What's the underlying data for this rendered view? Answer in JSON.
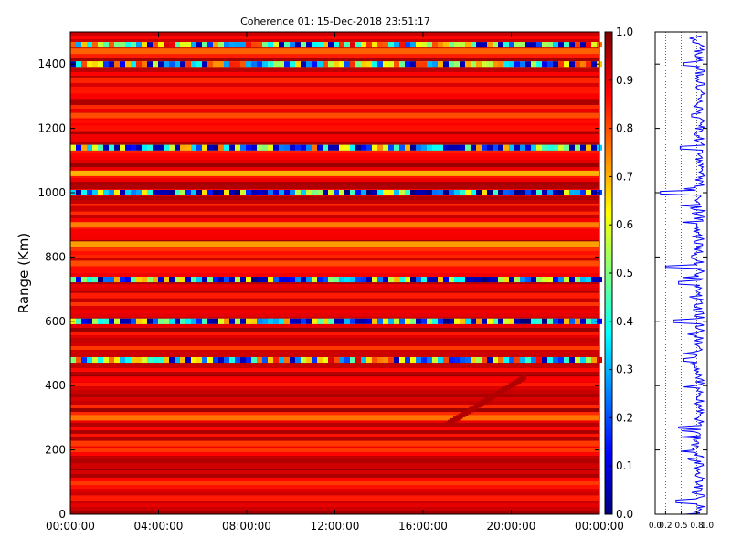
{
  "chart_data": [
    {
      "type": "heatmap",
      "title": "Coherence 01: 15-Dec-2018 23:51:17",
      "xlabel": "",
      "ylabel": "Range (Km)",
      "x_ticks": [
        "00:00:00",
        "04:00:00",
        "08:00:00",
        "12:00:00",
        "16:00:00",
        "20:00:00",
        "00:00:00"
      ],
      "xlim_hours": [
        0,
        24
      ],
      "y_ticks": [
        0,
        200,
        400,
        600,
        800,
        1000,
        1200,
        1400
      ],
      "ylim": [
        0,
        1500
      ],
      "colormap": "jet",
      "color_range": [
        0.0,
        1.0
      ],
      "colorbar_ticks": [
        "0.0",
        "0.1",
        "0.2",
        "0.3",
        "0.4",
        "0.5",
        "0.6",
        "0.7",
        "0.8",
        "0.9",
        "1.0"
      ],
      "range_bands": [
        {
          "range_km": 1460,
          "coherence": 0.62
        },
        {
          "range_km": 1440,
          "coherence": 0.78
        },
        {
          "range_km": 1400,
          "coherence": 0.55
        },
        {
          "range_km": 1350,
          "coherence": 0.84
        },
        {
          "range_km": 1300,
          "coherence": 0.88
        },
        {
          "range_km": 1240,
          "coherence": 0.8
        },
        {
          "range_km": 1200,
          "coherence": 0.86
        },
        {
          "range_km": 1140,
          "coherence": 0.45
        },
        {
          "range_km": 1060,
          "coherence": 0.7
        },
        {
          "range_km": 1000,
          "coherence": 0.35
        },
        {
          "range_km": 950,
          "coherence": 0.92
        },
        {
          "range_km": 900,
          "coherence": 0.75
        },
        {
          "range_km": 840,
          "coherence": 0.72
        },
        {
          "range_km": 780,
          "coherence": 0.8
        },
        {
          "range_km": 730,
          "coherence": 0.4
        },
        {
          "range_km": 680,
          "coherence": 0.85
        },
        {
          "range_km": 600,
          "coherence": 0.42
        },
        {
          "range_km": 540,
          "coherence": 0.93
        },
        {
          "range_km": 480,
          "coherence": 0.6
        },
        {
          "range_km": 420,
          "coherence": 0.88
        },
        {
          "range_km": 300,
          "coherence": 0.76
        },
        {
          "range_km": 220,
          "coherence": 0.82
        },
        {
          "range_km": 150,
          "coherence": 0.92
        },
        {
          "range_km": 50,
          "coherence": 0.85
        }
      ]
    },
    {
      "type": "line",
      "title": "",
      "xlabel": "",
      "ylabel": "",
      "x_ticks": [
        "0.0",
        "0.2",
        "0.5",
        "0.8",
        "1.0"
      ],
      "xlim": [
        0,
        1
      ],
      "ylim": [
        0,
        1500
      ],
      "color": "#0000ff",
      "gridlines_x": [
        0.2,
        0.5,
        0.8
      ],
      "profile": [
        {
          "range_km": 1470,
          "coherence": 0.72
        },
        {
          "range_km": 1400,
          "coherence": 0.55
        },
        {
          "range_km": 1300,
          "coherence": 0.88
        },
        {
          "range_km": 1240,
          "coherence": 0.7
        },
        {
          "range_km": 1140,
          "coherence": 0.48
        },
        {
          "range_km": 1000,
          "coherence": 0.1
        },
        {
          "range_km": 900,
          "coherence": 0.8
        },
        {
          "range_km": 800,
          "coherence": 0.7
        },
        {
          "range_km": 770,
          "coherence": 0.2
        },
        {
          "range_km": 720,
          "coherence": 0.45
        },
        {
          "range_km": 600,
          "coherence": 0.35
        },
        {
          "range_km": 480,
          "coherence": 0.55
        },
        {
          "range_km": 360,
          "coherence": 0.8
        },
        {
          "range_km": 270,
          "coherence": 0.45
        },
        {
          "range_km": 200,
          "coherence": 0.75
        },
        {
          "range_km": 40,
          "coherence": 0.4
        }
      ]
    }
  ]
}
